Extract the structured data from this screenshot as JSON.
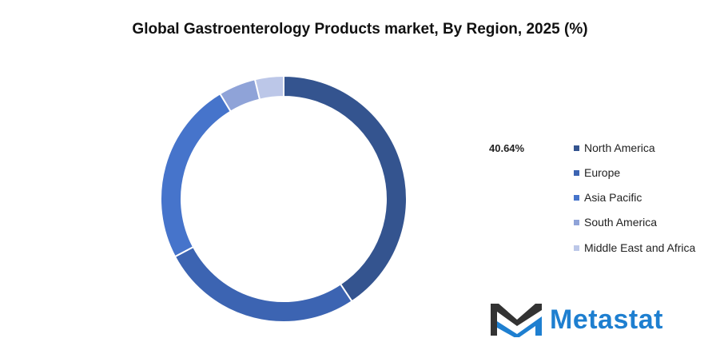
{
  "chart_data": {
    "type": "pie",
    "donut": true,
    "title": "Global Gastroenterology Products market, By Region, 2025 (%)",
    "categories": [
      "North America",
      "Europe",
      "Asia Pacific",
      "South America",
      "Middle East and Africa"
    ],
    "values": [
      40.64,
      26.6,
      24.1,
      4.9,
      3.76
    ],
    "colors": [
      "#34548f",
      "#3c64b2",
      "#4674cb",
      "#8fa3d8",
      "#bcc7e8"
    ],
    "data_labels": [
      "40.64%"
    ],
    "legend_position": "right"
  },
  "logo": {
    "text": "Metastat",
    "color": "#1e7fd0"
  }
}
